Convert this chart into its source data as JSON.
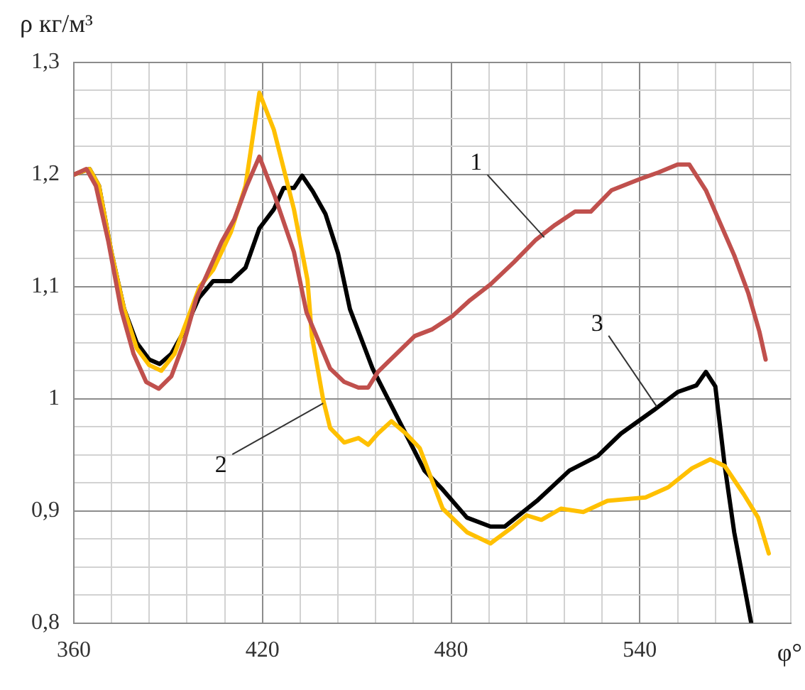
{
  "chart_data": {
    "type": "line",
    "ylabel": "ρ кг/м³",
    "xlabel": "φ°",
    "xlim": [
      360,
      588
    ],
    "xticks": [
      360,
      {
        "value": 372,
        "label": null
      },
      {
        "value": 384,
        "label": null
      },
      {
        "value": 396,
        "label": null
      },
      {
        "value": 408,
        "label": null
      },
      420,
      {
        "value": 432,
        "label": null
      },
      {
        "value": 444,
        "label": null
      },
      {
        "value": 456,
        "label": null
      },
      {
        "value": 468,
        "label": null
      },
      480,
      {
        "value": 492,
        "label": null
      },
      {
        "value": 504,
        "label": null
      },
      {
        "value": 516,
        "label": null
      },
      {
        "value": 528,
        "label": null
      },
      540,
      {
        "value": 552,
        "label": null
      },
      {
        "value": 564,
        "label": null
      },
      {
        "value": 576,
        "label": null
      },
      {
        "value": 588,
        "label": null
      }
    ],
    "ylim": [
      0.8,
      1.3
    ],
    "yticks": [
      {
        "value": 0.8,
        "label": "0,8"
      },
      {
        "value": 0.825,
        "label": null
      },
      {
        "value": 0.85,
        "label": null
      },
      {
        "value": 0.875,
        "label": null
      },
      {
        "value": 0.9,
        "label": "0,9"
      },
      {
        "value": 0.925,
        "label": null
      },
      {
        "value": 0.95,
        "label": null
      },
      {
        "value": 0.975,
        "label": null
      },
      1,
      {
        "value": 1.025,
        "label": null
      },
      {
        "value": 1.05,
        "label": null
      },
      {
        "value": 1.075,
        "label": null
      },
      {
        "value": 1.1,
        "label": "1,1"
      },
      {
        "value": 1.125,
        "label": null
      },
      {
        "value": 1.15,
        "label": null
      },
      {
        "value": 1.175,
        "label": null
      },
      {
        "value": 1.2,
        "label": "1,2"
      },
      {
        "value": 1.225,
        "label": null
      },
      {
        "value": 1.25,
        "label": null
      },
      {
        "value": 1.275,
        "label": null
      },
      {
        "value": 1.3,
        "label": "1,3"
      }
    ],
    "grid": true,
    "legend": false,
    "marker": "none",
    "line_style": "solid",
    "series": [
      {
        "color": "#c0504d",
        "x": [
          360,
          364,
          367,
          371,
          375,
          379,
          383,
          387,
          391,
          395,
          399,
          403,
          407,
          411,
          415,
          419,
          424,
          430,
          434,
          441.5,
          446,
          450.5,
          453.6,
          456.7,
          464,
          468.4,
          474,
          480.5,
          486,
          492.5,
          500,
          507,
          513,
          519.4,
          524.4,
          531,
          540,
          546,
          552,
          555.7,
          561,
          565.5,
          570,
          574.5,
          578,
          580
        ],
        "values": [
          1.2,
          1.205,
          1.19,
          1.14,
          1.08,
          1.04,
          1.015,
          1.009,
          1.02,
          1.05,
          1.09,
          1.115,
          1.14,
          1.16,
          1.19,
          1.216,
          1.18,
          1.131,
          1.077,
          1.027,
          1.015,
          1.01,
          1.01,
          1.024,
          1.044,
          1.056,
          1.062,
          1.074,
          1.088,
          1.102,
          1.122,
          1.142,
          1.155,
          1.167,
          1.167,
          1.186,
          1.196,
          1.202,
          1.209,
          1.209,
          1.186,
          1.157,
          1.128,
          1.094,
          1.06,
          1.035
        ]
      },
      {
        "color": "#ffc000",
        "x": [
          360,
          365,
          368,
          372,
          376,
          380,
          384,
          387.8,
          392,
          396,
          400,
          404.3,
          410,
          414.6,
          419,
          423.6,
          430,
          434.3,
          435.7,
          439.3,
          441.5,
          446,
          450.5,
          453.6,
          456.7,
          461,
          465.6,
          470,
          477.3,
          485,
          492.5,
          499.7,
          504,
          508.7,
          514.9,
          522,
          529.7,
          541.8,
          549,
          556.6,
          562.4,
          567,
          573,
          577.6,
          581
        ],
        "values": [
          1.2,
          1.205,
          1.19,
          1.13,
          1.08,
          1.045,
          1.03,
          1.025,
          1.04,
          1.07,
          1.1,
          1.115,
          1.149,
          1.19,
          1.273,
          1.24,
          1.169,
          1.106,
          1.056,
          0.999,
          0.974,
          0.961,
          0.965,
          0.959,
          0.969,
          0.98,
          0.969,
          0.956,
          0.902,
          0.881,
          0.871,
          0.886,
          0.896,
          0.892,
          0.902,
          0.899,
          0.909,
          0.912,
          0.921,
          0.938,
          0.946,
          0.94,
          0.915,
          0.894,
          0.862
        ]
      },
      {
        "color": "#000000",
        "x": [
          360,
          365,
          368,
          372,
          376,
          380,
          384,
          387.3,
          391,
          395,
          399.8,
          404.3,
          410,
          414.6,
          419,
          423.6,
          426.7,
          430,
          432.6,
          436,
          440,
          444,
          447.8,
          455,
          462.6,
          471.5,
          477.3,
          485,
          492.5,
          497,
          507.3,
          517.6,
          526.6,
          534,
          544.5,
          552,
          558,
          561,
          564,
          567,
          570,
          573,
          575.4
        ],
        "values": [
          1.2,
          1.205,
          1.19,
          1.13,
          1.08,
          1.05,
          1.035,
          1.031,
          1.04,
          1.06,
          1.09,
          1.105,
          1.105,
          1.117,
          1.152,
          1.169,
          1.188,
          1.188,
          1.199,
          1.185,
          1.165,
          1.13,
          1.08,
          1.027,
          0.985,
          0.936,
          0.919,
          0.894,
          0.886,
          0.886,
          0.909,
          0.936,
          0.949,
          0.969,
          0.99,
          1.006,
          1.012,
          1.024,
          1.011,
          0.94,
          0.881,
          0.836,
          0.8
        ]
      }
    ],
    "annotations": [
      {
        "text": "1",
        "x": 509.6,
        "y": 1.144
      },
      {
        "text": "2",
        "x": 439.3,
        "y": 0.996
      },
      {
        "text": "3",
        "x": 545.4,
        "y": 0.993
      }
    ]
  }
}
